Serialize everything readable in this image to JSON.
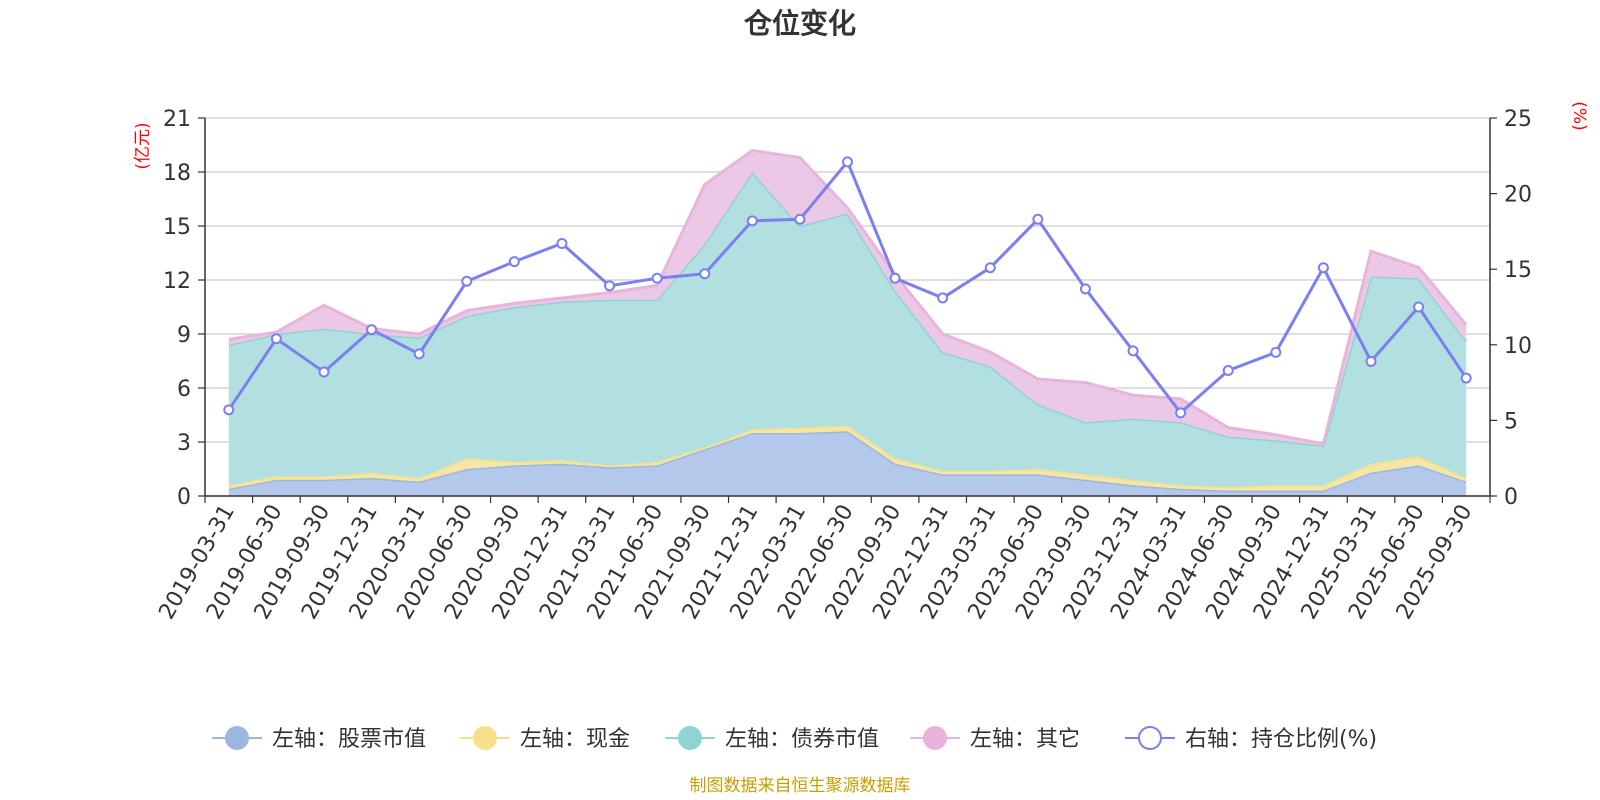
{
  "chart_data": {
    "type": "area",
    "title": "仓位变化",
    "left_axis_unit": "(亿元)",
    "right_axis_unit": "(%)",
    "left_ylim": [
      0,
      21
    ],
    "left_yticks": [
      0,
      3,
      6,
      9,
      12,
      15,
      18,
      21
    ],
    "right_ylim": [
      0,
      25
    ],
    "right_yticks": [
      0,
      5,
      10,
      15,
      20,
      25
    ],
    "categories": [
      "2019-03-31",
      "2019-06-30",
      "2019-09-30",
      "2019-12-31",
      "2020-03-31",
      "2020-06-30",
      "2020-09-30",
      "2020-12-31",
      "2021-03-31",
      "2021-06-30",
      "2021-09-30",
      "2021-12-31",
      "2022-03-31",
      "2022-06-30",
      "2022-09-30",
      "2022-12-31",
      "2023-03-31",
      "2023-06-30",
      "2023-09-30",
      "2023-12-31",
      "2024-03-31",
      "2024-06-30",
      "2024-09-30",
      "2024-12-31",
      "2025-03-31",
      "2025-06-30",
      "2025-09-30"
    ],
    "stacked_series": [
      {
        "name": "左轴：股票市值",
        "color": "#9bb7e0",
        "fill": "#b4c8eb",
        "values": [
          0.4,
          0.9,
          0.9,
          1.0,
          0.8,
          1.5,
          1.7,
          1.8,
          1.6,
          1.7,
          2.6,
          3.5,
          3.5,
          3.6,
          1.8,
          1.2,
          1.2,
          1.2,
          0.9,
          0.6,
          0.4,
          0.3,
          0.3,
          0.3,
          1.3,
          1.7,
          0.8
        ]
      },
      {
        "name": "左轴：现金",
        "color": "#f7e08a",
        "fill": "#f5e6a6",
        "values": [
          0.2,
          0.2,
          0.2,
          0.3,
          0.2,
          0.6,
          0.2,
          0.2,
          0.1,
          0.2,
          0.1,
          0.2,
          0.3,
          0.3,
          0.3,
          0.2,
          0.2,
          0.3,
          0.3,
          0.3,
          0.2,
          0.2,
          0.3,
          0.3,
          0.5,
          0.5,
          0.2
        ]
      },
      {
        "name": "左轴：债券市值",
        "color": "#8fd3d3",
        "fill": "#b2e0e0",
        "values": [
          7.8,
          7.9,
          8.2,
          7.7,
          7.8,
          7.9,
          8.6,
          8.8,
          9.2,
          9.0,
          11.3,
          14.3,
          11.2,
          11.8,
          9.3,
          6.6,
          5.8,
          3.6,
          2.9,
          3.4,
          3.5,
          2.8,
          2.5,
          2.2,
          10.4,
          9.9,
          7.6
        ]
      },
      {
        "name": "左轴：其它",
        "color": "#e8b4dc",
        "fill": "#ebc9e6",
        "values": [
          0.3,
          0.1,
          1.3,
          0.3,
          0.2,
          0.3,
          0.2,
          0.2,
          0.4,
          0.8,
          3.3,
          1.2,
          3.8,
          0.3,
          0.9,
          1.0,
          0.8,
          1.4,
          2.2,
          1.3,
          1.3,
          0.5,
          0.3,
          0.1,
          1.4,
          0.6,
          0.9
        ]
      }
    ],
    "line_series": {
      "name": "右轴：持仓比例(%)",
      "color": "#7b7ff0",
      "values": [
        5.7,
        10.4,
        8.2,
        11.0,
        9.4,
        14.2,
        15.5,
        16.7,
        13.9,
        14.4,
        14.7,
        18.2,
        18.3,
        22.1,
        14.4,
        13.1,
        15.1,
        18.3,
        13.7,
        9.6,
        5.5,
        8.3,
        9.5,
        15.1,
        8.9,
        12.5,
        7.8
      ]
    },
    "legend_position": "bottom",
    "grid": true
  },
  "source_note": "制图数据来自恒生聚源数据库"
}
